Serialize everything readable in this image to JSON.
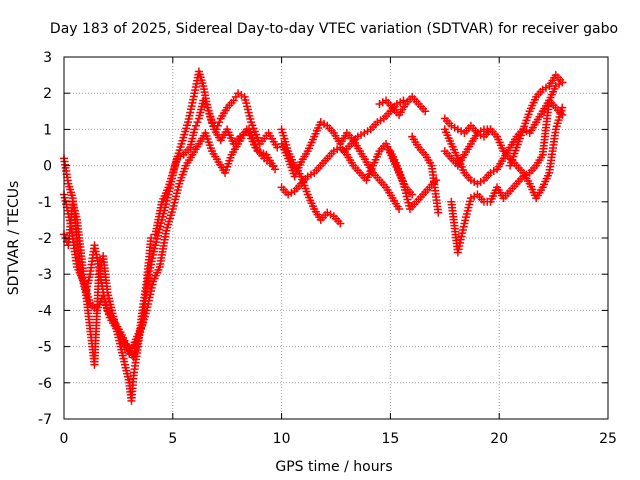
{
  "chart_data": {
    "type": "scatter",
    "title": "Day 183 of 2025, Sidereal Day-to-day VTEC variation (SDTVAR) for receiver gabo",
    "xlabel": "GPS time / hours",
    "ylabel": "SDTVAR / TECUs",
    "xlim": [
      0,
      25
    ],
    "ylim": [
      -7,
      3
    ],
    "xticks": [
      0,
      5,
      10,
      15,
      20,
      25
    ],
    "yticks": [
      -7,
      -6,
      -5,
      -4,
      -3,
      -2,
      -1,
      0,
      1,
      2,
      3
    ],
    "grid": true,
    "legend": "none",
    "marker": "+",
    "series": [
      {
        "name": "SDTVAR",
        "color": "#ff0000",
        "tracks": [
          {
            "x": [
              0.0,
              0.2,
              0.4,
              0.6,
              0.8,
              1.0,
              1.2,
              1.4,
              1.6,
              1.8,
              2.0,
              2.2,
              2.4,
              2.6,
              2.8,
              3.0,
              3.1,
              3.2,
              3.4,
              3.6,
              3.8,
              4.0,
              4.2,
              4.5,
              4.8,
              5.0,
              5.2,
              5.5,
              5.8,
              6.0,
              6.2,
              6.4,
              6.6,
              6.8,
              7.0,
              7.2,
              7.5,
              7.8,
              8.0,
              8.3,
              8.6,
              9.0,
              9.4,
              9.8
            ],
            "y": [
              -1.9,
              -2.2,
              -1.0,
              -1.5,
              -2.5,
              -3.5,
              -4.5,
              -5.5,
              -3.0,
              -2.5,
              -3.5,
              -4.0,
              -4.5,
              -5.0,
              -5.5,
              -6.0,
              -6.5,
              -5.8,
              -5.0,
              -4.0,
              -3.2,
              -2.0,
              -1.9,
              -1.0,
              -0.6,
              -0.2,
              0.2,
              0.3,
              0.5,
              1.0,
              1.3,
              1.8,
              1.6,
              1.2,
              1.0,
              1.3,
              1.6,
              1.8,
              2.0,
              1.9,
              1.2,
              0.6,
              0.9,
              0.5
            ]
          },
          {
            "x": [
              0.0,
              0.2,
              0.4,
              0.6,
              0.8,
              1.0,
              1.2,
              1.4,
              1.6,
              1.8,
              2.0,
              2.3,
              2.6,
              2.9,
              3.2,
              3.5,
              3.8,
              4.1,
              4.4,
              4.7,
              5.0,
              5.3,
              5.6,
              5.9,
              6.2,
              6.5,
              6.8,
              7.1,
              7.4,
              7.7,
              8.0,
              8.4,
              8.8,
              9.2,
              9.6
            ],
            "y": [
              0.2,
              -0.5,
              -0.9,
              -2.0,
              -3.0,
              -3.5,
              -3.0,
              -2.2,
              -2.8,
              -3.5,
              -4.0,
              -4.3,
              -4.6,
              -5.0,
              -5.3,
              -4.6,
              -4.0,
              -3.2,
              -2.8,
              -1.8,
              -1.2,
              -0.5,
              0.0,
              0.3,
              0.6,
              0.9,
              0.4,
              0.1,
              -0.2,
              0.3,
              0.6,
              1.0,
              0.5,
              0.2,
              0.0
            ]
          },
          {
            "x": [
              0.0,
              0.3,
              0.6,
              0.9,
              1.2,
              1.5,
              1.8,
              2.1,
              2.4,
              2.7,
              3.0,
              3.3,
              3.6,
              3.9,
              4.2,
              4.5,
              4.8,
              5.1,
              5.4,
              5.7,
              6.0,
              6.2,
              6.4,
              6.6,
              6.9,
              7.2,
              7.5,
              7.8,
              8.1,
              8.5,
              8.9,
              9.3,
              9.7
            ],
            "y": [
              -0.8,
              -1.6,
              -2.8,
              -3.2,
              -3.8,
              -4.0,
              -3.6,
              -4.2,
              -4.5,
              -4.8,
              -5.2,
              -4.8,
              -4.4,
              -3.0,
              -2.2,
              -1.5,
              -0.8,
              0.0,
              0.6,
              1.2,
              2.0,
              2.6,
              2.2,
              1.6,
              1.0,
              0.7,
              1.0,
              0.6,
              0.8,
              1.0,
              0.4,
              0.3,
              -0.1
            ]
          },
          {
            "x": [
              10.0,
              10.3,
              10.6,
              10.9,
              11.2,
              11.5,
              11.8,
              12.1,
              12.4,
              12.7,
              13.0,
              13.3,
              13.6,
              13.9,
              14.2,
              14.5,
              14.8,
              15.1,
              15.4
            ],
            "y": [
              0.6,
              0.2,
              -0.3,
              0.1,
              0.4,
              0.8,
              1.2,
              1.1,
              0.9,
              0.6,
              0.9,
              0.7,
              0.4,
              0.1,
              -0.2,
              -0.4,
              -0.6,
              -0.9,
              -1.2
            ]
          },
          {
            "x": [
              10.0,
              10.3,
              10.6,
              10.9,
              11.2,
              11.5,
              11.8,
              12.1,
              12.4,
              12.7
            ],
            "y": [
              1.0,
              0.4,
              0.0,
              -0.3,
              -0.8,
              -1.2,
              -1.5,
              -1.3,
              -1.4,
              -1.6
            ]
          },
          {
            "x": [
              10.0,
              10.3,
              10.6,
              10.9,
              11.2,
              11.5,
              11.8,
              12.1,
              12.4,
              12.7,
              13.0,
              13.3,
              13.6,
              13.9,
              14.2,
              14.5,
              14.8,
              15.1,
              15.4,
              15.7,
              16.0
            ],
            "y": [
              -0.6,
              -0.8,
              -0.7,
              -0.5,
              -0.3,
              -0.2,
              0.0,
              0.2,
              0.4,
              0.5,
              0.3,
              0.0,
              -0.2,
              -0.4,
              0.0,
              0.4,
              0.6,
              0.2,
              -0.2,
              -0.6,
              -0.8
            ]
          },
          {
            "x": [
              12.9,
              13.2,
              13.5,
              13.8,
              14.1,
              14.4,
              14.7,
              15.0,
              15.3,
              15.6
            ],
            "y": [
              0.4,
              0.6,
              0.8,
              0.9,
              1.0,
              1.2,
              1.3,
              1.5,
              1.7,
              1.8
            ]
          },
          {
            "x": [
              14.5,
              14.8,
              15.1,
              15.4,
              15.7,
              16.0,
              16.3,
              16.6
            ],
            "y": [
              1.7,
              1.8,
              1.6,
              1.4,
              1.7,
              1.9,
              1.7,
              1.5
            ]
          },
          {
            "x": [
              15.0,
              15.3,
              15.6,
              15.9,
              16.2,
              16.5,
              16.8,
              17.1
            ],
            "y": [
              0.4,
              0.0,
              -0.5,
              -1.2,
              -1.0,
              -0.8,
              -0.6,
              -0.4
            ]
          },
          {
            "x": [
              16.0,
              16.3,
              16.6,
              16.9,
              17.2
            ],
            "y": [
              0.8,
              0.5,
              0.3,
              0.0,
              -1.3
            ]
          },
          {
            "x": [
              17.5,
              17.8,
              18.1,
              18.4,
              18.7,
              19.0,
              19.3,
              19.6,
              19.9,
              20.2,
              20.5,
              20.8,
              21.1,
              21.4,
              21.7,
              22.0,
              22.3,
              22.6,
              22.9
            ],
            "y": [
              1.0,
              0.6,
              0.2,
              -0.2,
              -0.4,
              -0.5,
              -0.4,
              -0.2,
              -0.1,
              0.2,
              0.5,
              0.8,
              1.0,
              0.9,
              1.2,
              1.5,
              1.8,
              1.6,
              1.4
            ]
          },
          {
            "x": [
              17.5,
              17.8,
              18.1,
              18.4,
              18.7,
              19.0,
              19.3,
              19.6,
              19.9,
              20.2,
              20.5,
              20.8,
              21.1,
              21.4,
              21.7,
              22.0,
              22.3,
              22.6,
              22.9
            ],
            "y": [
              0.4,
              0.2,
              0.0,
              0.3,
              0.6,
              0.9,
              1.0,
              1.0,
              0.8,
              0.4,
              0.2,
              0.0,
              -0.2,
              -0.5,
              -0.9,
              -0.6,
              -0.2,
              1.0,
              1.6
            ]
          },
          {
            "x": [
              17.8,
              18.1,
              18.4,
              18.7,
              19.0,
              19.3,
              19.6,
              19.9,
              20.2,
              20.5,
              20.8,
              21.1,
              21.4,
              21.7,
              22.0,
              22.3,
              22.6,
              22.9
            ],
            "y": [
              -1.0,
              -2.4,
              -1.6,
              -0.9,
              -0.8,
              -1.0,
              -1.0,
              -0.6,
              -0.9,
              -0.7,
              -0.5,
              -0.3,
              -0.2,
              0.0,
              0.3,
              1.8,
              2.2,
              2.3
            ]
          },
          {
            "x": [
              17.5,
              17.8,
              18.1,
              18.4,
              18.7,
              19.0,
              19.3,
              19.6
            ],
            "y": [
              1.3,
              1.1,
              1.0,
              0.9,
              1.1,
              0.9,
              0.8,
              1.0
            ]
          },
          {
            "x": [
              20.5,
              20.8,
              21.1,
              21.4,
              21.7,
              22.0,
              22.3,
              22.6,
              22.9
            ],
            "y": [
              0.0,
              0.5,
              1.0,
              1.5,
              1.9,
              2.1,
              2.2,
              2.5,
              2.3
            ]
          }
        ]
      }
    ]
  }
}
